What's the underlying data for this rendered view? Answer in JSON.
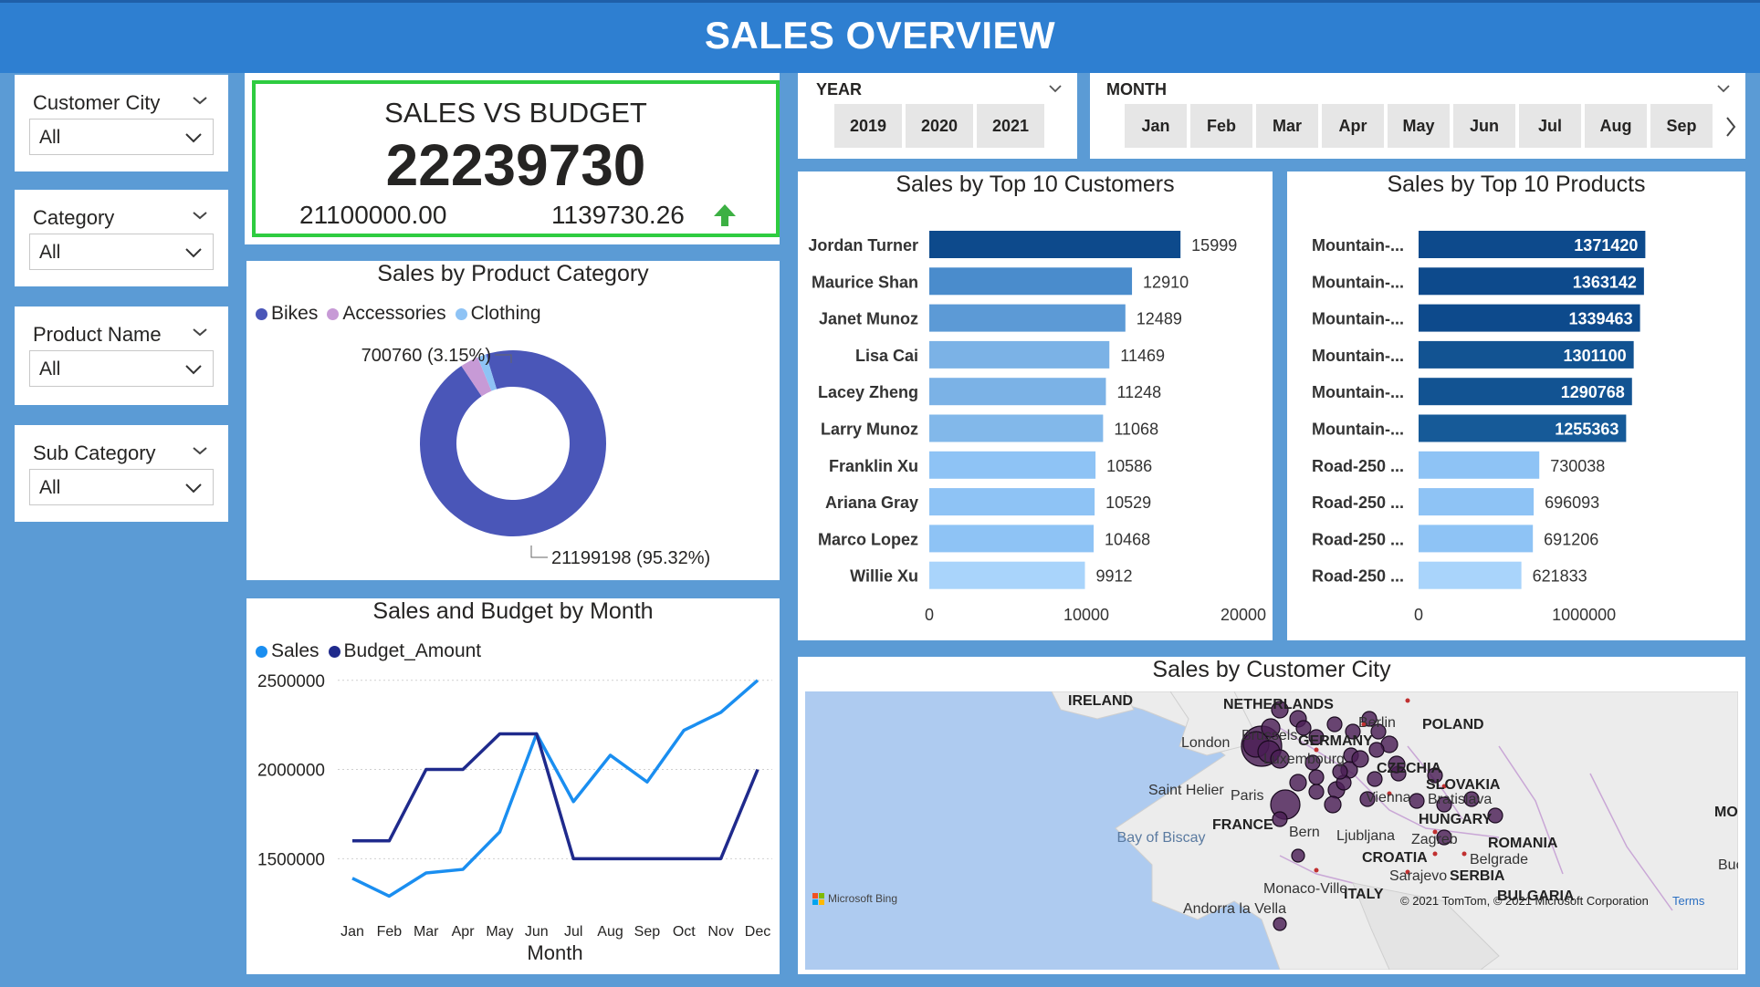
{
  "header": {
    "title": "SALES OVERVIEW"
  },
  "slicers": [
    {
      "title": "Customer City",
      "value": "All"
    },
    {
      "title": "Category",
      "value": "All"
    },
    {
      "title": "Product Name",
      "value": "All"
    },
    {
      "title": "Sub Category",
      "value": "All"
    }
  ],
  "kpi": {
    "title": "SALES VS BUDGET",
    "value": "22239730",
    "budget": "21100000.00",
    "difference": "1139730.26",
    "trend": "up",
    "trend_color": "#2ecc40"
  },
  "year_slicer": {
    "label": "YEAR",
    "options": [
      "2019",
      "2020",
      "2021"
    ]
  },
  "month_slicer": {
    "label": "MONTH",
    "options": [
      "Jan",
      "Feb",
      "Mar",
      "Apr",
      "May",
      "Jun",
      "Jul",
      "Aug",
      "Sep"
    ]
  },
  "map": {
    "title": "Sales by Customer City",
    "countries": [
      "IRELAND",
      "NETHERLANDS",
      "GERMANY",
      "POLAND",
      "CZECHIA",
      "SLOVAKIA",
      "HUNGARY",
      "FRANCE",
      "CROATIA",
      "ROMANIA",
      "SERBIA",
      "ITALY",
      "BULGARIA",
      "MOL"
    ],
    "cities": [
      "Berlin",
      "Brussels",
      "London",
      "Luxembourg",
      "Saint Helier",
      "Paris",
      "Vienna",
      "Bratislava",
      "Bern",
      "Ljubljana",
      "Zagreb",
      "Belgrade",
      "Sarajevo",
      "Monaco-Ville",
      "Andorra la Vella",
      "Buc"
    ],
    "water": "Bay of Biscay",
    "attribution": "© 2021 TomTom, © 2021 Microsoft Corporation",
    "terms": "Terms",
    "provider": "Microsoft Bing"
  },
  "chart_data": [
    {
      "type": "pie",
      "title": "Sales by Product Category",
      "categories": [
        "Bikes",
        "Accessories",
        "Clothing"
      ],
      "values": [
        21199198,
        700760,
        339772
      ],
      "data_labels": [
        "21199198 (95.32%)",
        "700760 (3.15%)",
        ""
      ],
      "colors": [
        "#4a56b8",
        "#c79ad6",
        "#8ec3f5"
      ],
      "legend": "top-left"
    },
    {
      "type": "line",
      "title": "Sales and Budget by Month",
      "xlabel": "Month",
      "ylabel": "",
      "categories": [
        "Jan",
        "Feb",
        "Mar",
        "Apr",
        "May",
        "Jun",
        "Jul",
        "Aug",
        "Sep",
        "Oct",
        "Nov",
        "Dec"
      ],
      "series": [
        {
          "name": "Sales",
          "color": "#1a8ef0",
          "values": [
            1390000,
            1290000,
            1420000,
            1440000,
            1650000,
            2200000,
            1820000,
            2080000,
            1930000,
            2220000,
            2320000,
            2500000
          ]
        },
        {
          "name": "Budget_Amount",
          "color": "#1f2a8c",
          "values": [
            1600000,
            1600000,
            2000000,
            2000000,
            2200000,
            2200000,
            1500000,
            1500000,
            1500000,
            1500000,
            1500000,
            2000000
          ]
        }
      ],
      "yticks": [
        "2500000",
        "2000000",
        "1500000"
      ],
      "ylim": [
        1200000,
        2550000
      ],
      "grid": true,
      "legend": "top-left"
    },
    {
      "type": "bar",
      "orientation": "horizontal",
      "title": "Sales by Top 10 Customers",
      "categories": [
        "Jordan Turner",
        "Maurice Shan",
        "Janet Munoz",
        "Lisa Cai",
        "Lacey Zheng",
        "Larry Munoz",
        "Franklin Xu",
        "Ariana Gray",
        "Marco Lopez",
        "Willie Xu"
      ],
      "values": [
        15999,
        12910,
        12489,
        11469,
        11248,
        11068,
        10586,
        10529,
        10468,
        9912
      ],
      "xticks": [
        "0",
        "10000",
        "20000"
      ],
      "xlim": [
        0,
        20000
      ],
      "colors": [
        "#0d4a8c",
        "#4a8ccc",
        "#5c9ad6",
        "#7bb2e6",
        "#7bb2e6",
        "#82b8ea",
        "#8ec3f5",
        "#8ec3f5",
        "#8ec3f5",
        "#a9d4fb"
      ]
    },
    {
      "type": "bar",
      "orientation": "horizontal",
      "title": "Sales by Top 10 Products",
      "categories": [
        "Mountain-...",
        "Mountain-...",
        "Mountain-...",
        "Mountain-...",
        "Mountain-...",
        "Mountain-...",
        "Road-250 ...",
        "Road-250 ...",
        "Road-250 ...",
        "Road-250 ..."
      ],
      "values": [
        1371420,
        1363142,
        1339463,
        1301100,
        1290768,
        1255363,
        730038,
        696093,
        691206,
        621833
      ],
      "xticks": [
        "0",
        "1000000"
      ],
      "xlim": [
        0,
        1800000
      ],
      "colors": [
        "#0d4a8c",
        "#0d4a8c",
        "#0d4a8c",
        "#125392",
        "#125392",
        "#165a98",
        "#8ec3f5",
        "#8ec3f5",
        "#8ec3f5",
        "#a9d4fb"
      ]
    }
  ]
}
